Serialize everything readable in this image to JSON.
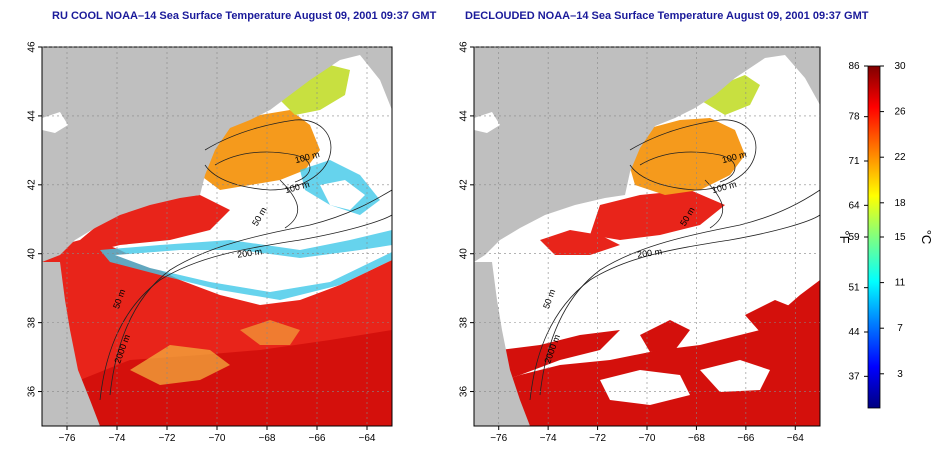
{
  "titles": {
    "left": "RU COOL NOAA–14 Sea Surface Temperature August 09, 2001 09:37 GMT",
    "right": "DECLOUDED NOAA–14 Sea Surface Temperature August 09, 2001 09:37 GMT"
  },
  "axes": {
    "lat_ticks": [
      {
        "value": 36,
        "label": "36"
      },
      {
        "value": 38,
        "label": "38"
      },
      {
        "value": 40,
        "label": "40"
      },
      {
        "value": 42,
        "label": "42"
      },
      {
        "value": 44,
        "label": "44"
      },
      {
        "value": 46,
        "label": "46"
      }
    ],
    "lon_ticks": [
      {
        "value": -76,
        "label": "−76"
      },
      {
        "value": -74,
        "label": "−74"
      },
      {
        "value": -72,
        "label": "−72"
      },
      {
        "value": -70,
        "label": "−70"
      },
      {
        "value": -68,
        "label": "−68"
      },
      {
        "value": -66,
        "label": "−66"
      },
      {
        "value": -64,
        "label": "−64"
      }
    ],
    "lat_range": [
      35,
      46
    ],
    "lon_range": [
      -77,
      -63
    ]
  },
  "contour_labels": {
    "m100a": "100 m",
    "m100b": "100 m",
    "m50": "50 m",
    "m200": "200 m",
    "m2000": "2000 m",
    "m50s": "50 m"
  },
  "colorbar": {
    "fahrenheit_ticks": [
      {
        "value": 86,
        "label": "86"
      },
      {
        "value": 78,
        "label": "78"
      },
      {
        "value": 71,
        "label": "71"
      },
      {
        "value": 64,
        "label": "64"
      },
      {
        "value": 59,
        "label": "59"
      },
      {
        "value": 51,
        "label": "51"
      },
      {
        "value": 44,
        "label": "44"
      },
      {
        "value": 37,
        "label": "37"
      }
    ],
    "celsius_ticks": [
      {
        "value": 30,
        "label": "30"
      },
      {
        "value": 26,
        "label": "26"
      },
      {
        "value": 22,
        "label": "22"
      },
      {
        "value": 18,
        "label": "18"
      },
      {
        "value": 15,
        "label": "15"
      },
      {
        "value": 11,
        "label": "11"
      },
      {
        "value": 7,
        "label": "7"
      },
      {
        "value": 3,
        "label": "3"
      }
    ],
    "f_unit": "°F",
    "c_unit": "°C",
    "c_range": [
      0,
      30
    ],
    "colors": [
      "#000080",
      "#0000ff",
      "#0080ff",
      "#00ffff",
      "#80ff80",
      "#ffff00",
      "#ff8000",
      "#ff0000",
      "#800000"
    ]
  },
  "map_colors": {
    "land": "#bfbfbf",
    "cloud": "#ffffff",
    "warm": "#e8241a",
    "hot": "#d4100c",
    "mid": "#f59a1c",
    "cool": "#c8e040",
    "cold": "#40c8e8"
  }
}
